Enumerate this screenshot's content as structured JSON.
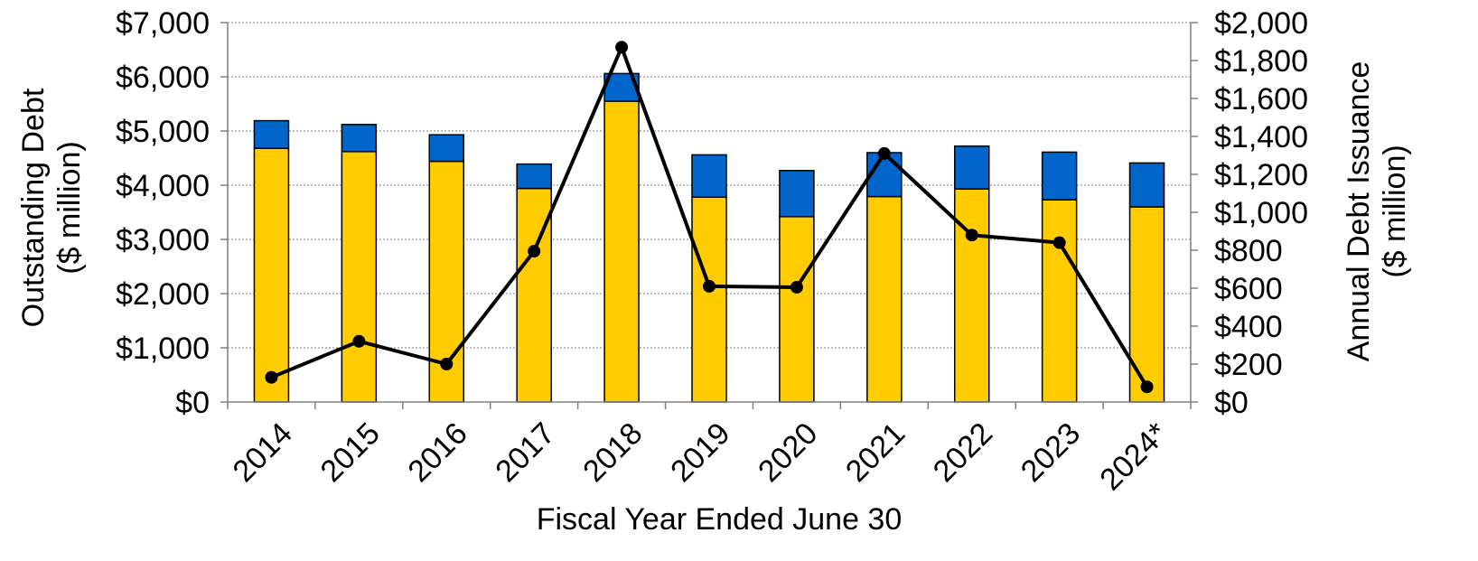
{
  "chart_data": {
    "type": "bar",
    "stacked": true,
    "categories": [
      "2014",
      "2015",
      "2016",
      "2017",
      "2018",
      "2019",
      "2020",
      "2021",
      "2022",
      "2023",
      "2024*"
    ],
    "series": [
      {
        "type": "bar",
        "axis": "left",
        "color": "#ffcc00",
        "values": [
          4680,
          4620,
          4440,
          3940,
          5550,
          3780,
          3420,
          3790,
          3930,
          3730,
          3600
        ]
      },
      {
        "type": "bar",
        "axis": "left",
        "color": "#0066cc",
        "values": [
          510,
          500,
          490,
          450,
          510,
          780,
          850,
          810,
          790,
          880,
          810
        ]
      },
      {
        "type": "line",
        "axis": "right",
        "color": "#000000",
        "values": [
          130,
          320,
          200,
          795,
          1870,
          610,
          605,
          1310,
          880,
          840,
          80
        ]
      }
    ],
    "xlabel": "Fiscal Year Ended June 30",
    "ylabel": "Outstanding Debt",
    "ylabel_unit": "($ million)",
    "y2label": "Annual Debt Issuance",
    "y2label_unit": "($ million)",
    "ylim": [
      0,
      7000
    ],
    "y2lim": [
      0,
      2000
    ],
    "yticks": [
      "$0",
      "$1,000",
      "$2,000",
      "$3,000",
      "$4,000",
      "$5,000",
      "$6,000",
      "$7,000"
    ],
    "y2ticks": [
      "$0",
      "$200",
      "$400",
      "$600",
      "$800",
      "$1,000",
      "$1,200",
      "$1,400",
      "$1,600",
      "$1,800",
      "$2,000"
    ],
    "grid": true,
    "legend": "none"
  }
}
